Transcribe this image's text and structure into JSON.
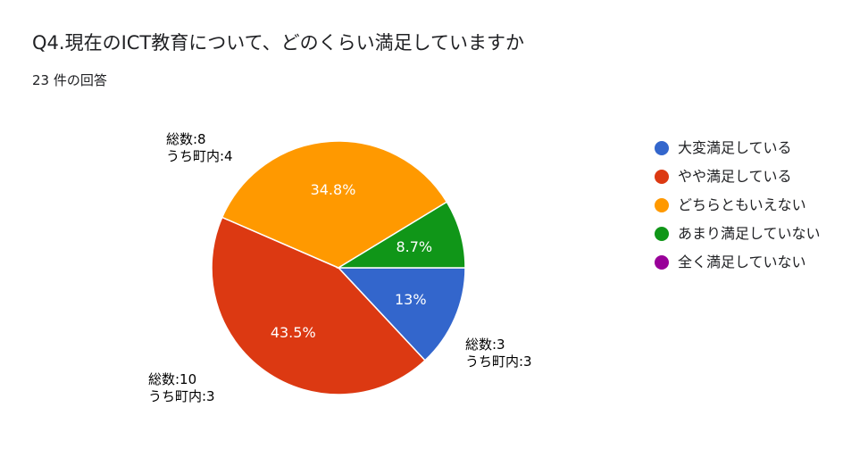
{
  "title": "Q4.現在のICT教育について、どのくらい満足していますか",
  "subtitle": "23 件の回答",
  "chart_data": {
    "type": "pie",
    "categories": [
      "大変満足している",
      "やや満足している",
      "どちらともいえない",
      "あまり満足していない",
      "全く満足していない"
    ],
    "values": [
      3,
      10,
      8,
      2,
      0
    ],
    "percent_labels": [
      "13%",
      "43.5%",
      "34.8%",
      "8.7%",
      ""
    ],
    "colors": [
      "#3366cc",
      "#dc3912",
      "#ff9900",
      "#109618",
      "#990099"
    ],
    "legend_position": "right"
  },
  "callouts": {
    "blue": {
      "line1": "総数:3",
      "line2": "うち町内:3"
    },
    "red": {
      "line1": "総数:10",
      "line2": "うち町内:3"
    },
    "orange": {
      "line1": "総数:8",
      "line2": "うち町内:4"
    }
  }
}
